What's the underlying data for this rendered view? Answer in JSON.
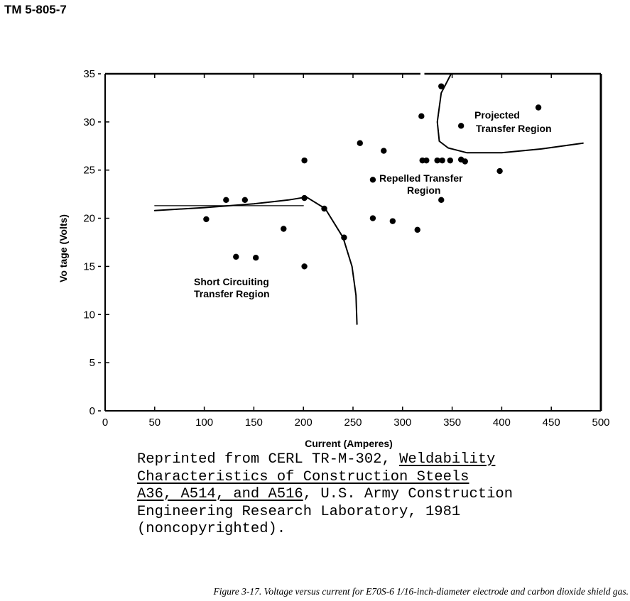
{
  "header": {
    "doc_id": "TM 5-805-7"
  },
  "chart_data": {
    "type": "scatter",
    "xlabel": "Current (Amperes)",
    "ylabel": "Vo tage (Volts)",
    "xlim": [
      0,
      500
    ],
    "ylim": [
      0,
      35
    ],
    "x_ticks": [
      "0",
      "50",
      "100",
      "150",
      "200",
      "250",
      "300",
      "350",
      "400",
      "450",
      "500"
    ],
    "y_ticks": [
      "0",
      "5",
      "10",
      "15",
      "20",
      "25",
      "30",
      "35"
    ],
    "grid": false,
    "points": [
      {
        "x": 102,
        "y": 19.9
      },
      {
        "x": 122,
        "y": 21.9
      },
      {
        "x": 141,
        "y": 21.9
      },
      {
        "x": 132,
        "y": 16.0
      },
      {
        "x": 152,
        "y": 15.9
      },
      {
        "x": 180,
        "y": 18.9
      },
      {
        "x": 201,
        "y": 26.0
      },
      {
        "x": 201,
        "y": 22.1
      },
      {
        "x": 201,
        "y": 15.0
      },
      {
        "x": 221,
        "y": 21.0
      },
      {
        "x": 241,
        "y": 18.0
      },
      {
        "x": 257,
        "y": 27.8
      },
      {
        "x": 270,
        "y": 24.0
      },
      {
        "x": 270,
        "y": 20.0
      },
      {
        "x": 281,
        "y": 27.0
      },
      {
        "x": 290,
        "y": 19.7
      },
      {
        "x": 315,
        "y": 18.8
      },
      {
        "x": 319,
        "y": 30.6
      },
      {
        "x": 320,
        "y": 26.0
      },
      {
        "x": 324,
        "y": 26.0
      },
      {
        "x": 335,
        "y": 26.0
      },
      {
        "x": 340,
        "y": 26.0
      },
      {
        "x": 348,
        "y": 26.0
      },
      {
        "x": 359,
        "y": 26.1
      },
      {
        "x": 363,
        "y": 25.9
      },
      {
        "x": 339,
        "y": 21.9
      },
      {
        "x": 339,
        "y": 33.7
      },
      {
        "x": 359,
        "y": 29.6
      },
      {
        "x": 398,
        "y": 24.9
      },
      {
        "x": 437,
        "y": 31.5
      }
    ],
    "curves": [
      {
        "name": "short-circuiting-boundary",
        "points": [
          [
            50,
            20.8
          ],
          [
            100,
            21.1
          ],
          [
            150,
            21.5
          ],
          [
            185,
            21.9
          ],
          [
            203,
            22.2
          ],
          [
            222,
            21.0
          ],
          [
            240,
            18.0
          ],
          [
            249,
            15.0
          ],
          [
            253,
            12.0
          ],
          [
            254,
            9.0
          ]
        ]
      },
      {
        "name": "short-circuiting-reference-line",
        "points": [
          [
            50,
            21.3
          ],
          [
            200,
            21.3
          ]
        ]
      },
      {
        "name": "projected-boundary",
        "points": [
          [
            349,
            35.0
          ],
          [
            339,
            33.0
          ],
          [
            335,
            30.0
          ],
          [
            337,
            28.0
          ],
          [
            346,
            27.3
          ],
          [
            365,
            26.8
          ],
          [
            400,
            26.8
          ],
          [
            440,
            27.2
          ],
          [
            482,
            27.8
          ]
        ]
      }
    ],
    "annotations": {
      "short_circuiting": [
        "Short Circuiting",
        "Transfer Region"
      ],
      "repelled": [
        "Repelled Transfer",
        "Region"
      ],
      "projected": [
        "Projected",
        "Transfer Region"
      ]
    }
  },
  "note": {
    "line1": "Reprinted from CERL TR-M-302, ",
    "line1_u": "Weldability",
    "line2_u": "Characteristics of Construction Steels",
    "line3_u": "A36, A514, and A516",
    "line3_rest": ", U.S. Army Construction",
    "line4": "Engineering Research Laboratory, 1981",
    "line5": "(noncopyrighted)."
  },
  "caption": {
    "text": "Figure 3-17. Voltage versus current for E70S-6 1/16-inch-diameter electrode and carbon dioxide shield gas."
  }
}
